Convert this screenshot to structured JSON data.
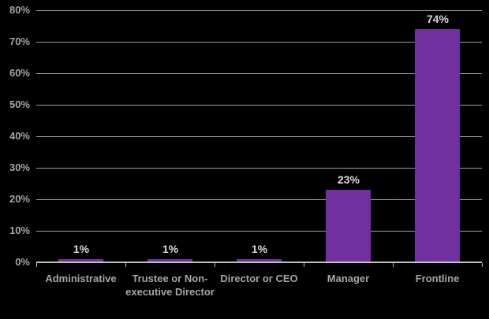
{
  "chart_data": {
    "type": "bar",
    "title": "",
    "xlabel": "",
    "ylabel": "",
    "categories": [
      "Administrative",
      "Trustee or Non-executive Director",
      "Director or CEO",
      "Manager",
      "Frontline"
    ],
    "values": [
      1,
      1,
      1,
      23,
      74
    ],
    "data_labels": [
      "1%",
      "1%",
      "1%",
      "23%",
      "74%"
    ],
    "ylim": [
      0,
      80
    ],
    "y_tick_interval": 10,
    "y_tick_labels": [
      "0%",
      "10%",
      "20%",
      "30%",
      "40%",
      "50%",
      "60%",
      "70%",
      "80%"
    ],
    "grid": true,
    "legend": false,
    "colors": {
      "background": "#000000",
      "bar": "#7030a0",
      "gridline": "#a0a0a0",
      "axis_line": "#bfbfbf",
      "axis_tick_label": "#a6a6a6",
      "category_label": "#a6a6a6",
      "data_label": "#d9d9d9"
    }
  }
}
